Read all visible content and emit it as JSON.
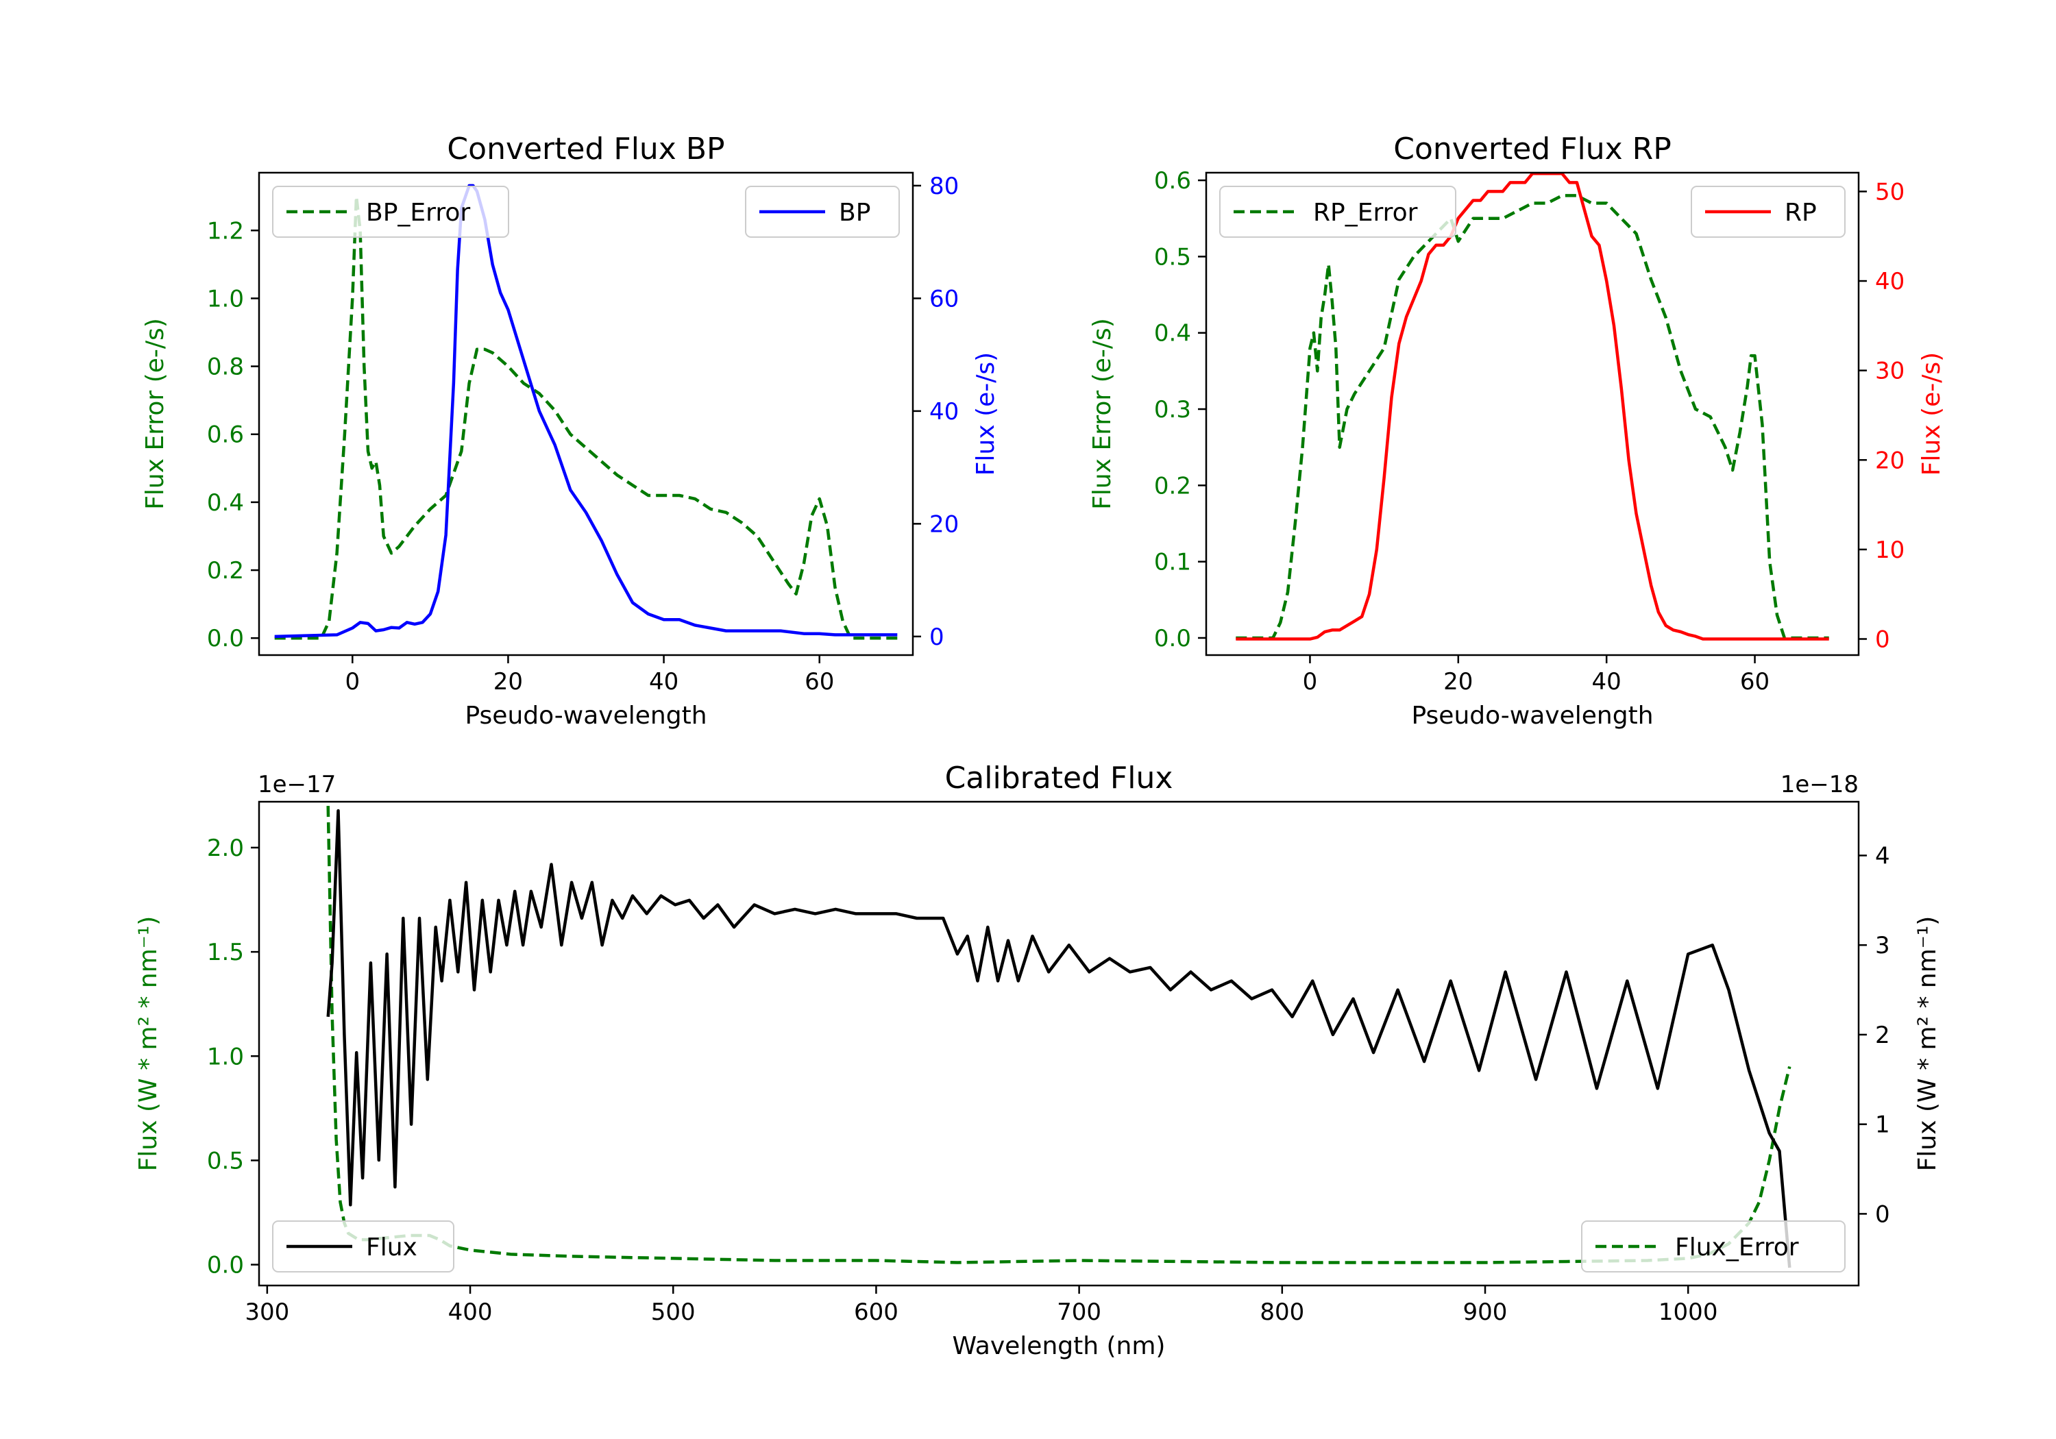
{
  "colors": {
    "error": "#007a00",
    "bp": "#0000ff",
    "rp": "#ff0000",
    "flux": "#000000",
    "axis": "#000000"
  },
  "chart_data": [
    {
      "id": "bp",
      "type": "line",
      "title": "Converted Flux BP",
      "xlabel": "Pseudo-wavelength",
      "ylabel_left": "Flux Error (e-/s)",
      "ylabel_right": "Flux (e-/s)",
      "xlim": [
        -12,
        72
      ],
      "ylim_left": [
        -0.05,
        1.37
      ],
      "ylim_right": [
        -3.3,
        82.3
      ],
      "xticks": [
        0,
        20,
        40,
        60
      ],
      "xtick_labels": [
        "0",
        "20",
        "40",
        "60"
      ],
      "yticks_left": [
        0.0,
        0.2,
        0.4,
        0.6,
        0.8,
        1.0,
        1.2
      ],
      "ytick_labels_left": [
        "0.0",
        "0.2",
        "0.4",
        "0.6",
        "0.8",
        "1.0",
        "1.2"
      ],
      "yticks_right": [
        0,
        20,
        40,
        60,
        80
      ],
      "ytick_labels_right": [
        "0",
        "20",
        "40",
        "60",
        "80"
      ],
      "series": [
        {
          "name": "BP_Error",
          "axis": "left",
          "style": "dashed",
          "color_key": "error",
          "legend": "top-left",
          "x": [
            -10,
            -4,
            -3,
            -2,
            -1,
            0,
            0.5,
            1,
            1.5,
            2,
            2.5,
            3,
            3.5,
            4,
            5,
            6,
            7,
            8,
            10,
            12,
            14,
            15,
            16,
            17,
            18,
            20,
            22,
            24,
            26,
            28,
            30,
            32,
            34,
            36,
            38,
            40,
            42,
            44,
            46,
            48,
            50,
            52,
            54,
            56,
            57,
            58,
            59,
            60,
            61,
            62,
            63,
            64,
            66,
            68,
            70
          ],
          "y": [
            0.0,
            0.0,
            0.05,
            0.25,
            0.6,
            1.0,
            1.3,
            1.2,
            0.8,
            0.55,
            0.5,
            0.52,
            0.45,
            0.3,
            0.25,
            0.27,
            0.3,
            0.33,
            0.38,
            0.42,
            0.55,
            0.75,
            0.85,
            0.85,
            0.84,
            0.8,
            0.75,
            0.72,
            0.67,
            0.6,
            0.56,
            0.52,
            0.48,
            0.45,
            0.42,
            0.42,
            0.42,
            0.41,
            0.38,
            0.37,
            0.34,
            0.3,
            0.23,
            0.16,
            0.13,
            0.22,
            0.36,
            0.41,
            0.33,
            0.15,
            0.05,
            0.0,
            0.0,
            0.0,
            0.0
          ]
        },
        {
          "name": "BP",
          "axis": "right",
          "style": "solid",
          "color_key": "bp",
          "legend": "top-right",
          "x": [
            -10,
            -2,
            0,
            1,
            2,
            3,
            4,
            5,
            6,
            7,
            8,
            9,
            10,
            11,
            12,
            13,
            13.5,
            14,
            15,
            15.5,
            16,
            17,
            18,
            19,
            20,
            22,
            24,
            26,
            28,
            30,
            32,
            34,
            36,
            38,
            40,
            42,
            44,
            46,
            48,
            50,
            52,
            55,
            58,
            60,
            62,
            66,
            70
          ],
          "y": [
            0,
            0.3,
            1.5,
            2.5,
            2.3,
            1.0,
            1.2,
            1.6,
            1.5,
            2.5,
            2.2,
            2.5,
            4,
            8,
            18,
            45,
            65,
            76,
            80,
            80,
            79,
            74,
            66,
            61,
            58,
            49,
            40,
            34,
            26,
            22,
            17,
            11,
            6,
            4,
            3,
            3,
            2,
            1.5,
            1,
            1,
            1,
            1,
            0.5,
            0.5,
            0.3,
            0.3,
            0.3
          ]
        }
      ]
    },
    {
      "id": "rp",
      "type": "line",
      "title": "Converted Flux RP",
      "xlabel": "Pseudo-wavelength",
      "ylabel_left": "Flux Error (e-/s)",
      "ylabel_right": "Flux (e-/s)",
      "xlim": [
        -14,
        74
      ],
      "ylim_left": [
        -0.0225,
        0.61
      ],
      "ylim_right": [
        -1.8,
        52.1
      ],
      "xticks": [
        0,
        20,
        40,
        60
      ],
      "xtick_labels": [
        "0",
        "20",
        "40",
        "60"
      ],
      "yticks_left": [
        0.0,
        0.1,
        0.2,
        0.3,
        0.4,
        0.5,
        0.6
      ],
      "ytick_labels_left": [
        "0.0",
        "0.1",
        "0.2",
        "0.3",
        "0.4",
        "0.5",
        "0.6"
      ],
      "yticks_right": [
        0,
        10,
        20,
        30,
        40,
        50
      ],
      "ytick_labels_right": [
        "0",
        "10",
        "20",
        "30",
        "40",
        "50"
      ],
      "series": [
        {
          "name": "RP_Error",
          "axis": "left",
          "style": "dashed",
          "color_key": "error",
          "legend": "top-left",
          "x": [
            -10,
            -5,
            -4,
            -3,
            -2,
            -1,
            0,
            0.5,
            1,
            1.5,
            2,
            2.5,
            3,
            3.5,
            4,
            5,
            6,
            8,
            10,
            12,
            14,
            16,
            18,
            19,
            20,
            22,
            24,
            26,
            28,
            30,
            32,
            34,
            36,
            38,
            40,
            42,
            44,
            46,
            48,
            50,
            52,
            54,
            55,
            56,
            57,
            58,
            59,
            59.5,
            60,
            61,
            62,
            63,
            64,
            66,
            70
          ],
          "y": [
            0.0,
            0.0,
            0.02,
            0.06,
            0.15,
            0.25,
            0.38,
            0.4,
            0.35,
            0.42,
            0.45,
            0.49,
            0.44,
            0.38,
            0.25,
            0.3,
            0.32,
            0.35,
            0.38,
            0.47,
            0.5,
            0.52,
            0.54,
            0.55,
            0.52,
            0.55,
            0.55,
            0.55,
            0.56,
            0.57,
            0.57,
            0.58,
            0.58,
            0.57,
            0.57,
            0.55,
            0.53,
            0.47,
            0.42,
            0.35,
            0.3,
            0.29,
            0.27,
            0.25,
            0.22,
            0.27,
            0.33,
            0.37,
            0.37,
            0.28,
            0.1,
            0.03,
            0.0,
            0.0,
            0.0
          ]
        },
        {
          "name": "RP",
          "axis": "right",
          "style": "solid",
          "color_key": "rp",
          "legend": "top-right",
          "x": [
            -10,
            0,
            1,
            2,
            3,
            4,
            5,
            6,
            7,
            8,
            9,
            10,
            11,
            12,
            13,
            14,
            15,
            16,
            17,
            18,
            19,
            20,
            21,
            22,
            23,
            24,
            25,
            26,
            27,
            28,
            29,
            30,
            31,
            32,
            33,
            34,
            35,
            36,
            37,
            38,
            39,
            40,
            41,
            42,
            43,
            44,
            45,
            46,
            47,
            48,
            49,
            50,
            51,
            52,
            53,
            54,
            55,
            56,
            58,
            60,
            62,
            64,
            66,
            70
          ],
          "y": [
            0,
            0,
            0.2,
            0.8,
            1.0,
            1.0,
            1.5,
            2.0,
            2.5,
            5,
            10,
            18,
            27,
            33,
            36,
            38,
            40,
            43,
            44,
            44,
            45,
            47,
            48,
            49,
            49,
            50,
            50,
            50,
            51,
            51,
            51,
            52,
            52,
            52,
            52,
            52,
            51,
            51,
            48,
            45,
            44,
            40,
            35,
            28,
            20,
            14,
            10,
            6,
            3,
            1.5,
            1.0,
            0.8,
            0.5,
            0.3,
            0,
            0,
            0,
            0,
            0,
            0,
            0,
            0,
            0,
            0
          ]
        }
      ]
    },
    {
      "id": "cal",
      "type": "line",
      "title": "Calibrated Flux",
      "xlabel": "Wavelength (nm)",
      "ylabel_left": "Flux (W * m² * nm⁻¹)",
      "ylabel_right": "Flux (W * m² * nm⁻¹)",
      "offset_left": "1e−17",
      "offset_right": "1e−18",
      "xlim": [
        296,
        1084
      ],
      "ylim_left": [
        -0.1,
        2.22
      ],
      "ylim_right": [
        -0.8,
        4.6
      ],
      "xticks": [
        300,
        400,
        500,
        600,
        700,
        800,
        900,
        1000
      ],
      "xtick_labels": [
        "300",
        "400",
        "500",
        "600",
        "700",
        "800",
        "900",
        "1000"
      ],
      "yticks_left": [
        0.0,
        0.5,
        1.0,
        1.5,
        2.0
      ],
      "ytick_labels_left": [
        "0.0",
        "0.5",
        "1.0",
        "1.5",
        "2.0"
      ],
      "yticks_right": [
        0,
        1,
        2,
        3,
        4
      ],
      "ytick_labels_right": [
        "0",
        "1",
        "2",
        "3",
        "4"
      ],
      "series": [
        {
          "name": "Flux_Error",
          "axis": "left",
          "style": "dashed",
          "color_key": "error",
          "legend": "bottom-right",
          "x": [
            330,
            332,
            334,
            336,
            338,
            340,
            345,
            350,
            360,
            370,
            380,
            385,
            390,
            400,
            420,
            450,
            500,
            550,
            600,
            640,
            700,
            800,
            900,
            980,
            1000,
            1010,
            1020,
            1030,
            1035,
            1040,
            1045,
            1050
          ],
          "y": [
            2.2,
            1.2,
            0.6,
            0.3,
            0.2,
            0.15,
            0.12,
            0.12,
            0.13,
            0.14,
            0.14,
            0.12,
            0.09,
            0.07,
            0.05,
            0.04,
            0.03,
            0.02,
            0.02,
            0.01,
            0.02,
            0.01,
            0.01,
            0.02,
            0.03,
            0.05,
            0.1,
            0.2,
            0.3,
            0.5,
            0.75,
            0.95
          ]
        },
        {
          "name": "Flux",
          "axis": "right",
          "style": "solid",
          "color_key": "flux",
          "legend": "bottom-left",
          "x": [
            330,
            332,
            335,
            338,
            341,
            344,
            347,
            351,
            355,
            359,
            363,
            367,
            371,
            375,
            379,
            383,
            386,
            390,
            394,
            398,
            402,
            406,
            410,
            414,
            418,
            422,
            426,
            430,
            435,
            440,
            445,
            450,
            455,
            460,
            465,
            470,
            475,
            480,
            487,
            494,
            501,
            508,
            515,
            522,
            530,
            540,
            550,
            560,
            570,
            580,
            590,
            600,
            610,
            620,
            633,
            640,
            645,
            650,
            655,
            660,
            665,
            670,
            677,
            685,
            695,
            705,
            715,
            725,
            735,
            745,
            755,
            765,
            775,
            785,
            795,
            805,
            815,
            825,
            835,
            845,
            857,
            870,
            883,
            897,
            910,
            925,
            940,
            955,
            970,
            985,
            1000,
            1012,
            1020,
            1030,
            1040,
            1045,
            1050
          ],
          "y": [
            2.2,
            2.8,
            4.5,
            2.0,
            0.1,
            1.8,
            0.4,
            2.8,
            0.6,
            2.9,
            0.3,
            3.3,
            1.0,
            3.3,
            1.5,
            3.2,
            2.6,
            3.5,
            2.7,
            3.7,
            2.5,
            3.5,
            2.7,
            3.5,
            3.0,
            3.6,
            3.0,
            3.6,
            3.2,
            3.9,
            3.0,
            3.7,
            3.3,
            3.7,
            3.0,
            3.5,
            3.3,
            3.55,
            3.35,
            3.55,
            3.45,
            3.5,
            3.3,
            3.45,
            3.2,
            3.45,
            3.35,
            3.4,
            3.35,
            3.4,
            3.35,
            3.35,
            3.35,
            3.3,
            3.3,
            2.9,
            3.1,
            2.6,
            3.2,
            2.6,
            3.05,
            2.6,
            3.1,
            2.7,
            3.0,
            2.7,
            2.85,
            2.7,
            2.75,
            2.5,
            2.7,
            2.5,
            2.6,
            2.4,
            2.5,
            2.2,
            2.6,
            2.0,
            2.4,
            1.8,
            2.5,
            1.7,
            2.6,
            1.6,
            2.7,
            1.5,
            2.7,
            1.4,
            2.6,
            1.4,
            2.9,
            3.0,
            2.5,
            1.6,
            0.9,
            0.7,
            -0.6
          ]
        }
      ]
    }
  ]
}
